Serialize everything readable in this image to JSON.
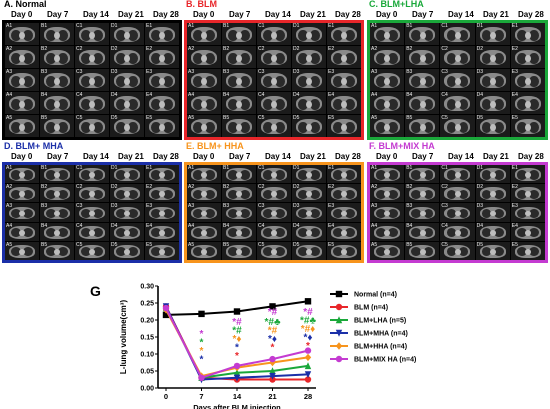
{
  "panels": [
    {
      "letter_title": "A. Normal",
      "color": "#000000",
      "title_color": "#000000",
      "cells": [
        "A1",
        "B1",
        "C1",
        "D1",
        "E1",
        "A2",
        "B2",
        "C2",
        "D2",
        "E2",
        "A3",
        "B3",
        "C3",
        "D3",
        "E3",
        "A4",
        "B4",
        "C4",
        "D4",
        "E4",
        "A5",
        "B5",
        "C5",
        "D5",
        "E5"
      ]
    },
    {
      "letter_title": "B. BLM",
      "color": "#e8262a",
      "title_color": "#e8262a",
      "cells": [
        "A1",
        "B1",
        "C1",
        "D1",
        "E1",
        "A2",
        "B2",
        "C2",
        "D2",
        "E2",
        "A3",
        "B3",
        "C3",
        "D3",
        "E3",
        "A4",
        "B4",
        "C4",
        "D4",
        "E4",
        "A5",
        "B5",
        "C5",
        "D5",
        "E5"
      ]
    },
    {
      "letter_title": "C. BLM+LHA",
      "color": "#1aa83a",
      "title_color": "#1aa83a",
      "cells": [
        "A1",
        "B1",
        "C1",
        "D1",
        "E1",
        "A2",
        "B2",
        "C2",
        "D2",
        "E2",
        "A3",
        "B3",
        "C3",
        "D3",
        "E3",
        "A4",
        "B4",
        "C4",
        "D4",
        "E4",
        "A5",
        "B5",
        "C5",
        "D5",
        "E5"
      ]
    },
    {
      "letter_title": "D. BLM+ MHA",
      "color": "#1b2fa8",
      "title_color": "#1b2fa8",
      "cells": [
        "A1",
        "B1",
        "C1",
        "D1",
        "E1",
        "A2",
        "B2",
        "C2",
        "D2",
        "E2",
        "A3",
        "B3",
        "C3",
        "D3",
        "E3",
        "A4",
        "B4",
        "C4",
        "D4",
        "E4",
        "A5",
        "B5",
        "C5",
        "D5",
        "E5"
      ]
    },
    {
      "letter_title": "E. BLM+ HHA",
      "color": "#f7941d",
      "title_color": "#f7941d",
      "cells": [
        "A1",
        "B1",
        "C1",
        "D1",
        "E1",
        "A2",
        "B2",
        "C2",
        "D2",
        "E2",
        "A3",
        "B3",
        "C3",
        "D3",
        "E3",
        "A4",
        "B4",
        "C4",
        "D4",
        "E4",
        "A5",
        "B5",
        "C5",
        "D5",
        "E5"
      ]
    },
    {
      "letter_title": "F. BLM+MIX HA",
      "color": "#c43bd1",
      "title_color": "#c43bd1",
      "cells": [
        "A1",
        "B1",
        "C1",
        "D1",
        "E1",
        "A2",
        "B2",
        "C2",
        "D2",
        "E2",
        "A3",
        "B3",
        "C3",
        "D3",
        "E3",
        "A4",
        "B4",
        "C4",
        "D4",
        "E4",
        "A5",
        "B5",
        "C5",
        "D5",
        "E5"
      ]
    }
  ],
  "day_labels": [
    "Day 0",
    "Day 7",
    "Day 14",
    "Day 21",
    "Day 28"
  ],
  "chart_label": "G",
  "chart_data": {
    "type": "line",
    "title": "",
    "xlabel": "Days after BLM injection",
    "ylabel": "L-lung volume(cm³)",
    "x": [
      0,
      7,
      14,
      21,
      28
    ],
    "xticks": [
      "0",
      "7",
      "14",
      "21",
      "28"
    ],
    "ylim": [
      0.0,
      0.3
    ],
    "yticks": [
      "0.00",
      "0.05",
      "0.10",
      "0.15",
      "0.20",
      "0.25",
      "0.30"
    ],
    "legend_position": "right",
    "series": [
      {
        "name": "Normal (n=4)",
        "color": "#000000",
        "marker": "square",
        "values": [
          0.215,
          0.218,
          0.225,
          0.24,
          0.255
        ]
      },
      {
        "name": "BLM (n=4)",
        "color": "#e8262a",
        "marker": "circle",
        "values": [
          0.24,
          0.03,
          0.025,
          0.025,
          0.025
        ]
      },
      {
        "name": "BLM+LHA (n=5)",
        "color": "#1aa83a",
        "marker": "triangle-up",
        "values": [
          0.235,
          0.03,
          0.045,
          0.05,
          0.065
        ]
      },
      {
        "name": "BLM+MHA (n=4)",
        "color": "#1b2fa8",
        "marker": "triangle-down",
        "values": [
          0.24,
          0.025,
          0.03,
          0.035,
          0.04
        ]
      },
      {
        "name": "BLM+HHA (n=4)",
        "color": "#f7941d",
        "marker": "diamond",
        "values": [
          0.23,
          0.035,
          0.06,
          0.075,
          0.09
        ]
      },
      {
        "name": "BLM+MIX HA (n=4)",
        "color": "#c43bd1",
        "marker": "circle",
        "values": [
          0.235,
          0.03,
          0.065,
          0.085,
          0.11
        ]
      }
    ],
    "annotations": [
      {
        "x": 7,
        "y": 0.15,
        "text": "*",
        "color": "#c43bd1"
      },
      {
        "x": 7,
        "y": 0.125,
        "text": "*",
        "color": "#1aa83a"
      },
      {
        "x": 7,
        "y": 0.1,
        "text": "*",
        "color": "#f7941d"
      },
      {
        "x": 7,
        "y": 0.075,
        "text": "*",
        "color": "#1b2fa8"
      },
      {
        "x": 14,
        "y": 0.185,
        "text": "*#",
        "color": "#c43bd1"
      },
      {
        "x": 14,
        "y": 0.16,
        "text": "*#",
        "color": "#1aa83a"
      },
      {
        "x": 14,
        "y": 0.135,
        "text": "*♦",
        "color": "#f7941d"
      },
      {
        "x": 14,
        "y": 0.11,
        "text": "*",
        "color": "#1b2fa8"
      },
      {
        "x": 14,
        "y": 0.085,
        "text": "*",
        "color": "#e8262a"
      },
      {
        "x": 21,
        "y": 0.215,
        "text": "*#",
        "color": "#c43bd1"
      },
      {
        "x": 21,
        "y": 0.185,
        "text": "*#♣",
        "color": "#1aa83a"
      },
      {
        "x": 21,
        "y": 0.16,
        "text": "*#",
        "color": "#f7941d"
      },
      {
        "x": 21,
        "y": 0.135,
        "text": "*♦",
        "color": "#1b2fa8"
      },
      {
        "x": 21,
        "y": 0.11,
        "text": "*",
        "color": "#e8262a"
      },
      {
        "x": 28,
        "y": 0.215,
        "text": "*#",
        "color": "#c43bd1"
      },
      {
        "x": 28,
        "y": 0.19,
        "text": "*#♣",
        "color": "#1aa83a"
      },
      {
        "x": 28,
        "y": 0.165,
        "text": "*#♦",
        "color": "#f7941d"
      },
      {
        "x": 28,
        "y": 0.14,
        "text": "*♦",
        "color": "#1b2fa8"
      },
      {
        "x": 28,
        "y": 0.115,
        "text": "*",
        "color": "#e8262a"
      }
    ]
  }
}
